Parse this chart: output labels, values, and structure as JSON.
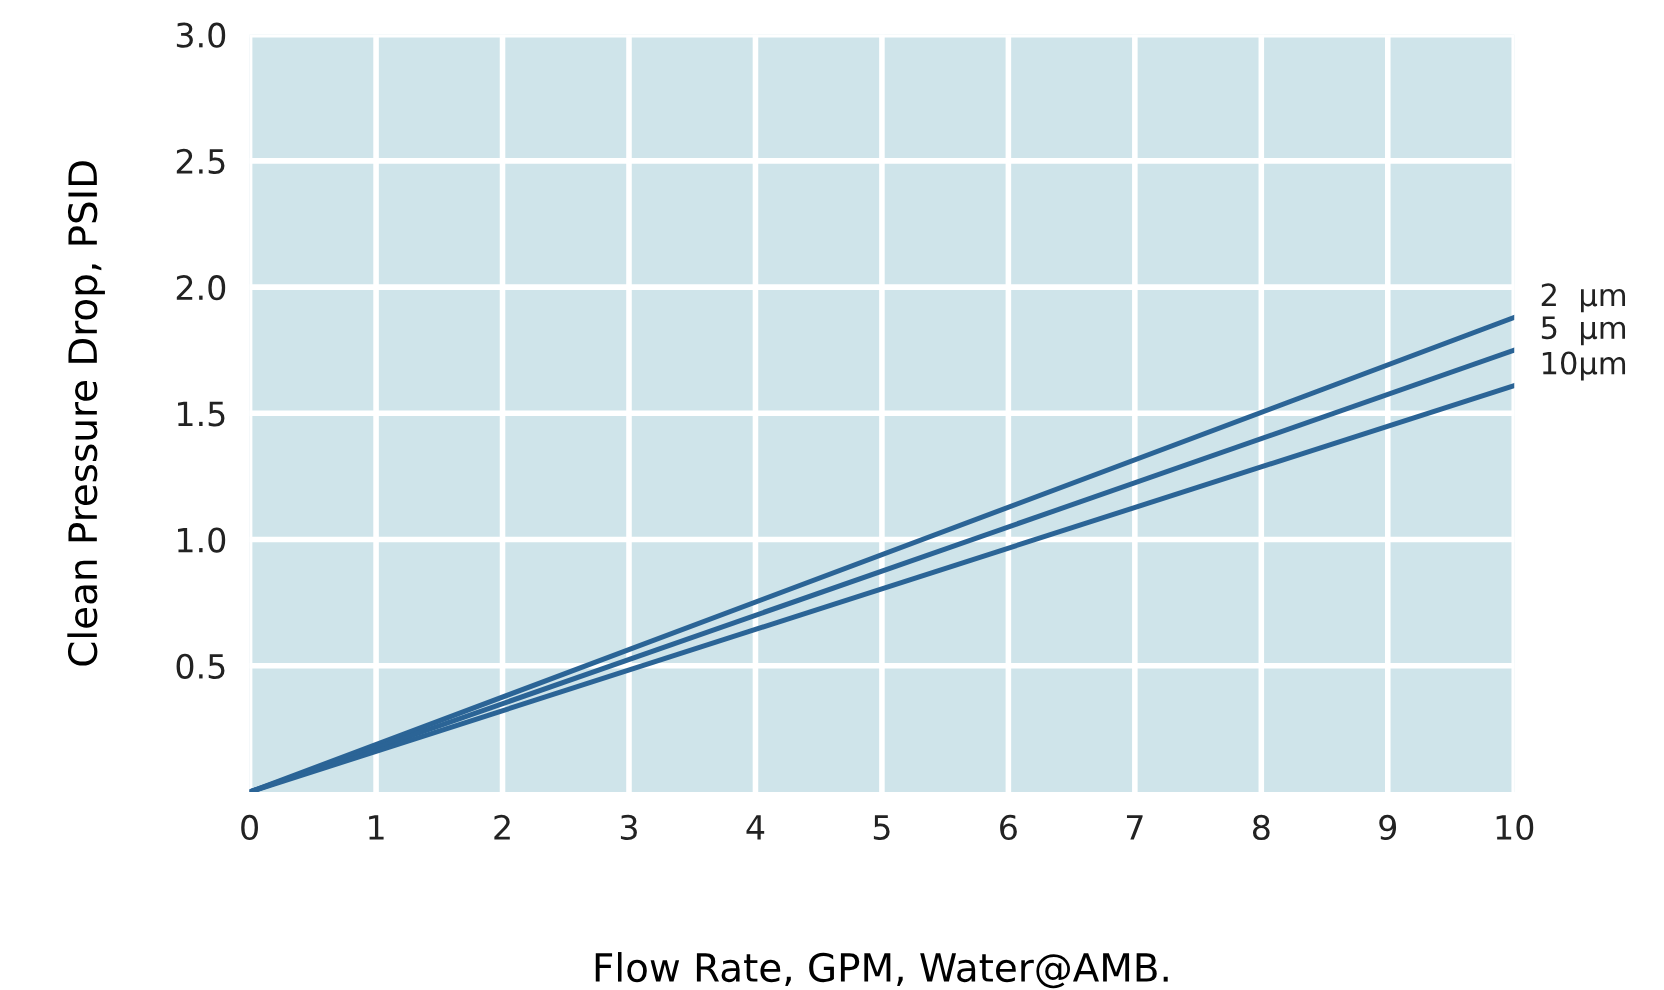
{
  "chart_data": {
    "type": "line",
    "xlabel": "Flow Rate, GPM, Water@AMB.",
    "ylabel": "Clean Pressure Drop, PSID",
    "x": [
      0,
      10
    ],
    "series": [
      {
        "name": "2  µm",
        "color": "#2b6496",
        "values": [
          0,
          1.88
        ]
      },
      {
        "name": "5  µm",
        "color": "#2b6496",
        "values": [
          0,
          1.75
        ]
      },
      {
        "name": "10µm",
        "color": "#2b6496",
        "values": [
          0,
          1.61
        ]
      }
    ],
    "xlim": [
      0,
      10
    ],
    "ylim": [
      0,
      3.0
    ],
    "xticks": [
      0,
      1,
      2,
      3,
      4,
      5,
      6,
      7,
      8,
      9,
      10
    ],
    "yticks": [
      0.5,
      {
        "value": 1,
        "label": "1.0"
      },
      1.5,
      {
        "value": 2,
        "label": "2.0"
      },
      2.5,
      {
        "value": 3,
        "label": "3.0"
      }
    ],
    "grid": true
  }
}
